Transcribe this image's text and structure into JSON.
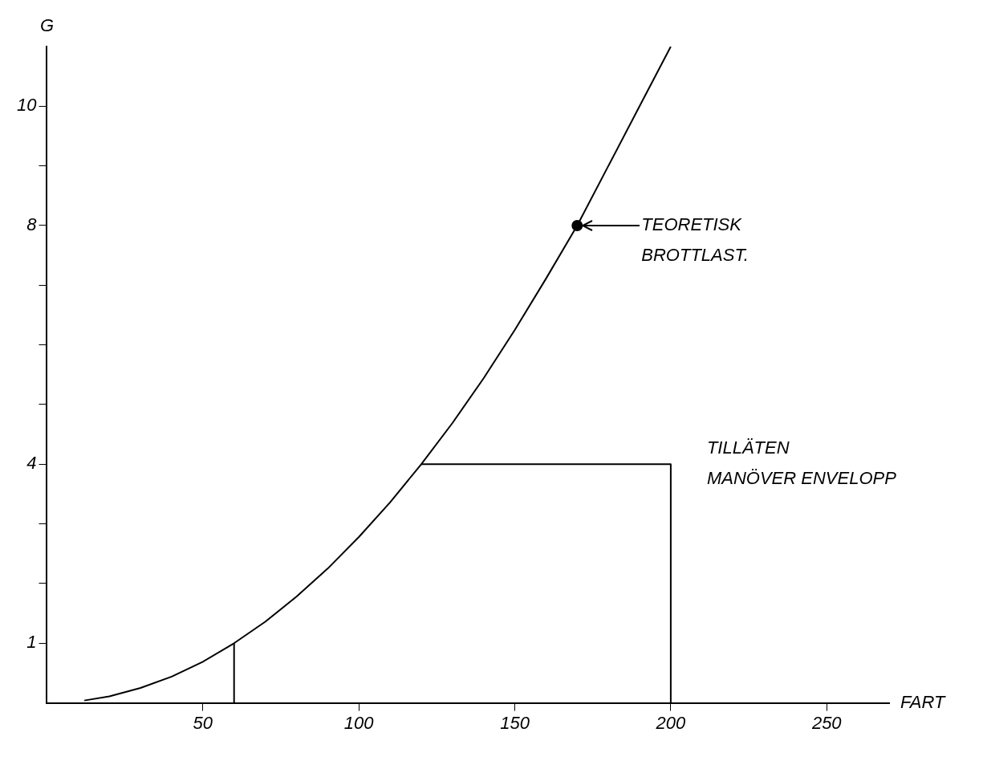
{
  "chart_data": {
    "type": "line",
    "xlabel": "FART",
    "ylabel": "G",
    "xlim": [
      0,
      270
    ],
    "ylim": [
      0,
      11
    ],
    "xticks": [
      50,
      100,
      150,
      200,
      250
    ],
    "yticks": [
      1,
      {
        "value": 2,
        "label": null
      },
      {
        "value": 3,
        "label": null
      },
      4,
      {
        "value": 5,
        "label": null
      },
      {
        "value": 6,
        "label": null
      },
      {
        "value": 7,
        "label": null
      },
      8,
      {
        "value": 9,
        "label": null
      },
      10
    ],
    "grid": false,
    "legend": false,
    "marker": "none",
    "line_style": "solid",
    "series": [
      {
        "color": "#000000",
        "x": [
          12,
          20,
          30,
          40,
          50,
          60,
          70,
          80,
          90,
          100,
          110,
          120,
          130,
          140,
          150,
          160,
          170,
          180,
          190,
          200
        ],
        "values": [
          0.04,
          0.11,
          0.25,
          0.44,
          0.69,
          1,
          1.36,
          1.78,
          2.25,
          2.78,
          3.36,
          4,
          4.69,
          5.44,
          6.25,
          7.11,
          8,
          9,
          10,
          11
        ]
      },
      {
        "color": "#000000",
        "x": [
          60,
          60
        ],
        "values": [
          0,
          1
        ]
      },
      {
        "color": "#000000",
        "x": [
          120,
          200,
          200
        ],
        "values": [
          4,
          4,
          0
        ]
      },
      {
        "type": "scatter",
        "color": "#000000",
        "marker": "circle",
        "x": [
          170
        ],
        "values": [
          8
        ]
      }
    ],
    "annotations": [
      "TEORETISK\nBROTTLAST.",
      {
        "text": "TILLÄTEN\nMANÖVER ENVELOPP",
        "x": 200,
        "y": 4
      }
    ]
  }
}
